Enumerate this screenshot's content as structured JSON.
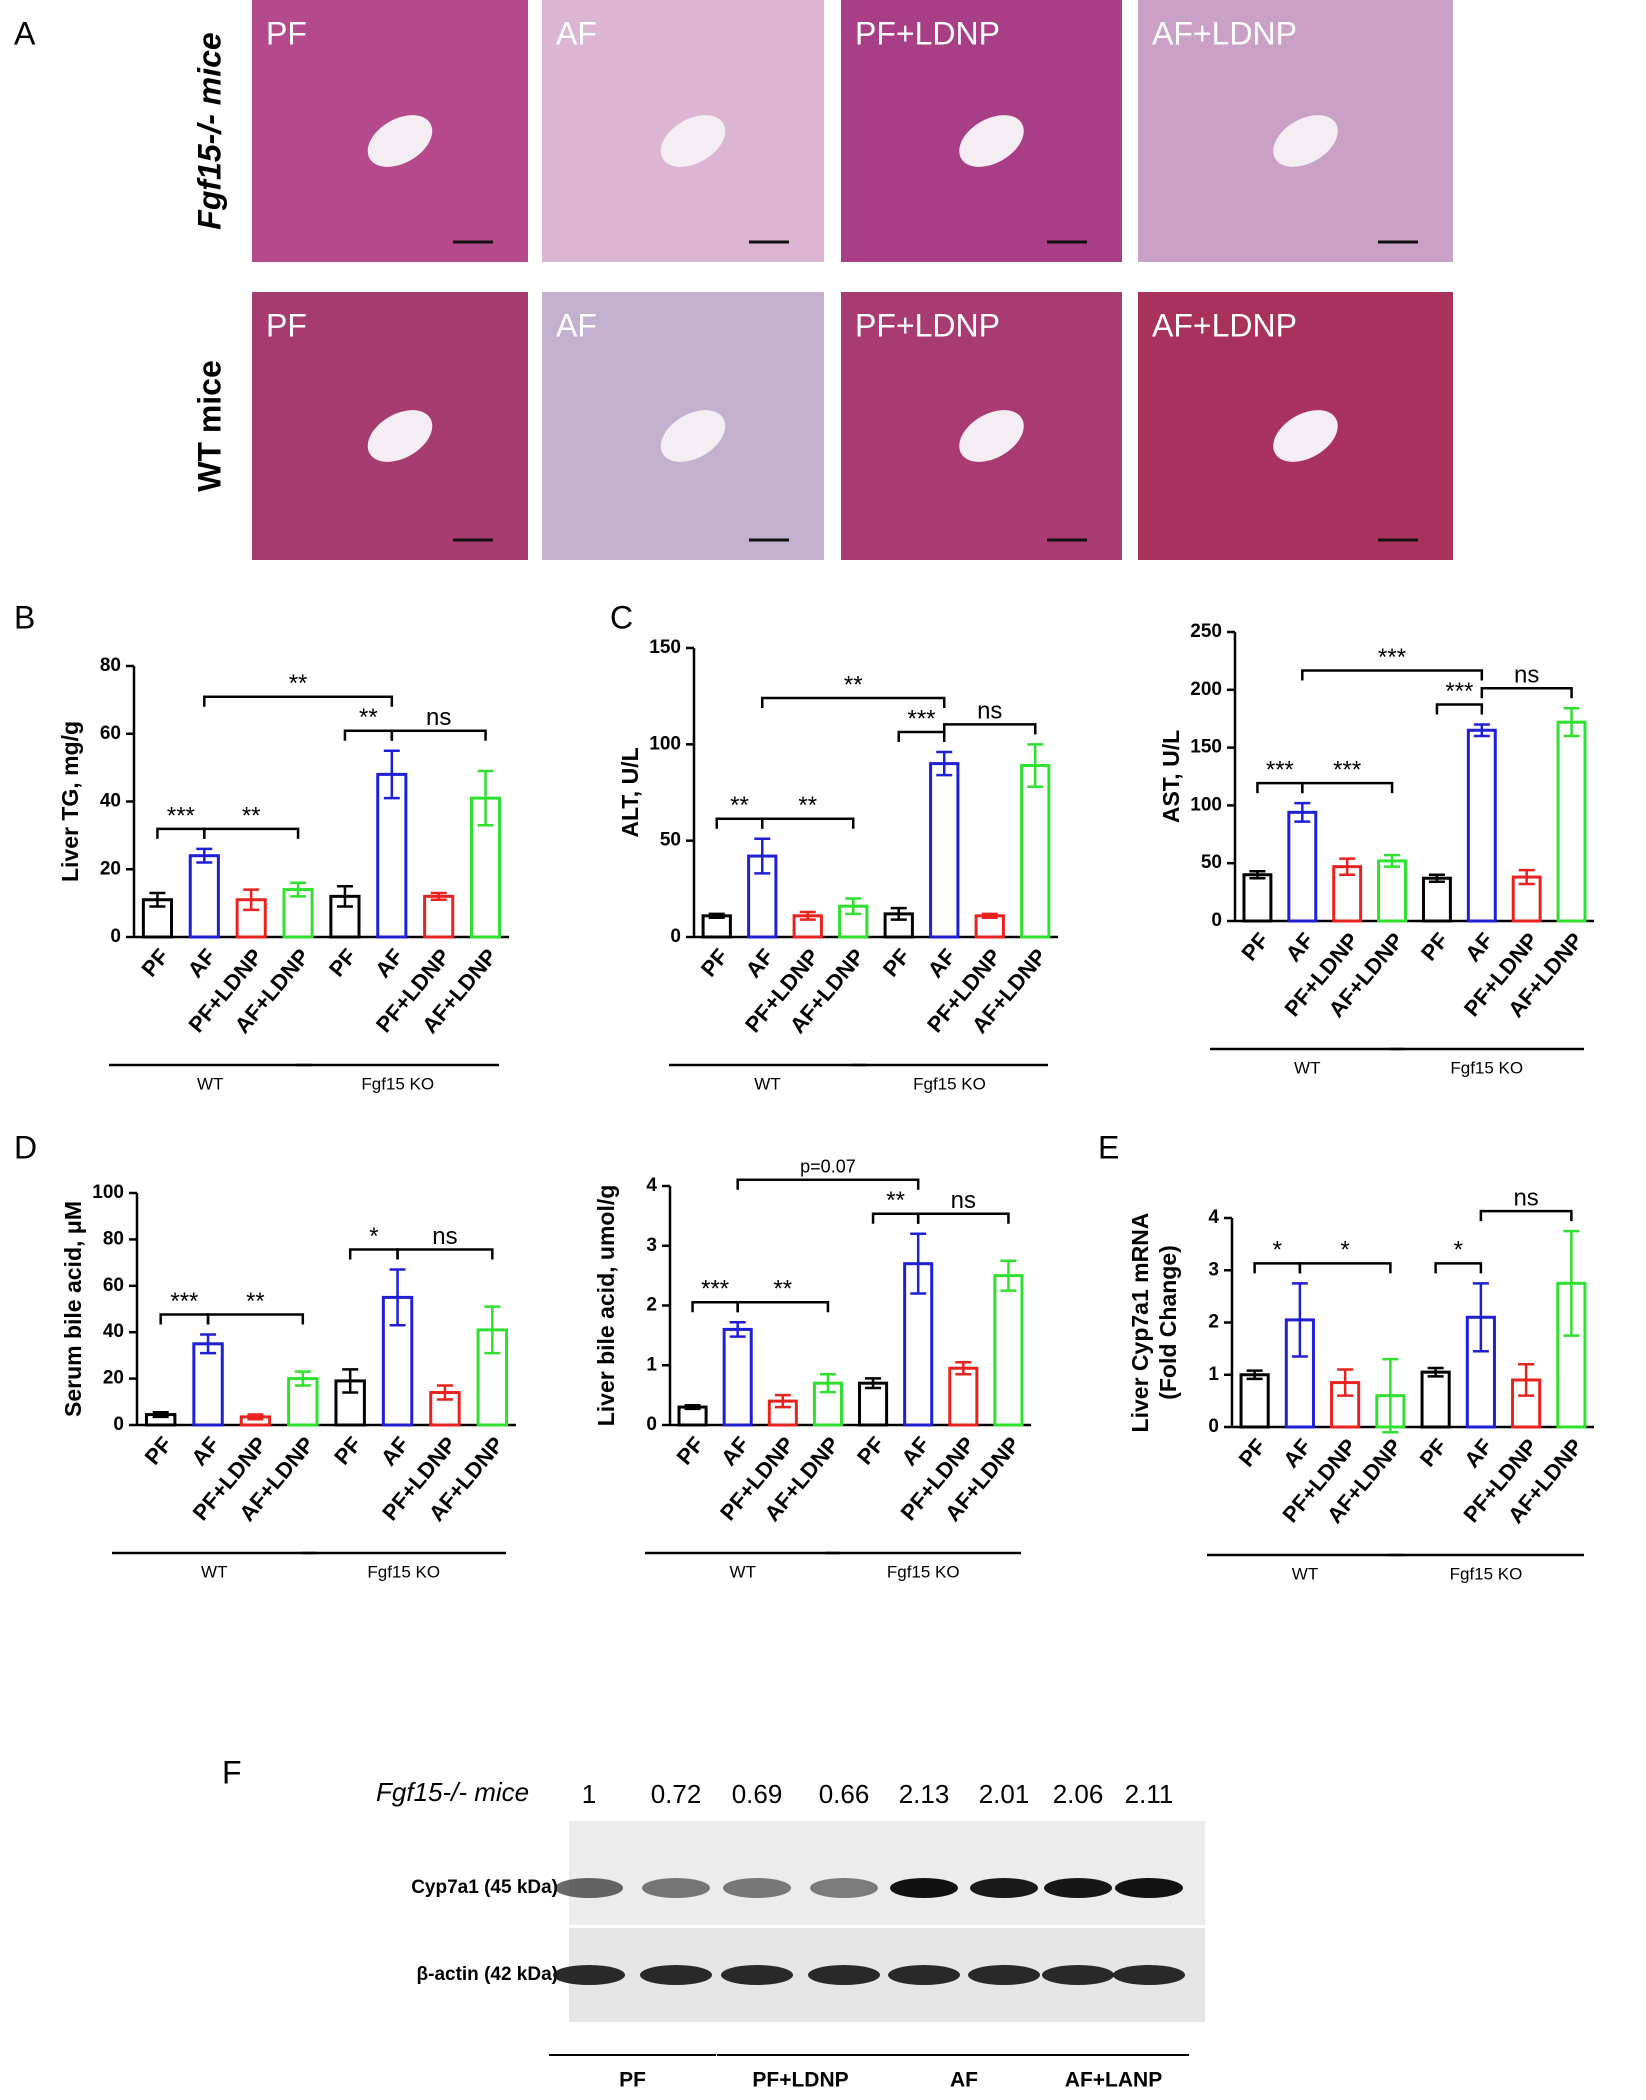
{
  "panel_labels": [
    "A",
    "B",
    "C",
    "D",
    "E",
    "F"
  ],
  "histology": {
    "rows": [
      {
        "label": "Fgf15-/- mice",
        "panels": [
          "PF",
          "AF",
          "PF+LDNP",
          "AF+LDNP"
        ]
      },
      {
        "label": "WT mice",
        "panels": [
          "PF",
          "AF",
          "PF+LDNP",
          "AF+LDNP"
        ]
      }
    ]
  },
  "chart_data": [
    {
      "type": "bar",
      "ylabel": [
        "Liver TG, mg/g"
      ],
      "categories": [
        "PF",
        "AF",
        "PF+LDNP",
        "AF+LDNP",
        "PF",
        "AF",
        "PF+LDNP",
        "AF+LDNP"
      ],
      "values": [
        11,
        24,
        11,
        14,
        12,
        48,
        12,
        41
      ],
      "errors": [
        2,
        2,
        3,
        2,
        3,
        7,
        1,
        8
      ],
      "colors": [
        "#000000",
        "#1f1fd6",
        "#e8231f",
        "#2fe02f",
        "#000000",
        "#1f1fd6",
        "#e8231f",
        "#2fe02f"
      ],
      "ylim": [
        0,
        80
      ],
      "yticks": [
        0,
        20,
        40,
        60,
        80
      ],
      "groups": [
        "WT",
        "Fgf15 KO"
      ],
      "brackets": [
        {
          "pair": [
            0,
            1
          ],
          "label": "***"
        },
        {
          "pair": [
            1,
            3
          ],
          "label": "**"
        },
        {
          "pair": [
            4,
            5
          ],
          "label": "**"
        },
        {
          "pair": [
            5,
            7
          ],
          "label": "ns"
        },
        {
          "pair": [
            1,
            5
          ],
          "label": "**"
        }
      ]
    },
    {
      "type": "bar",
      "ylabel": [
        "ALT, U/L"
      ],
      "categories": [
        "PF",
        "AF",
        "PF+LDNP",
        "AF+LDNP",
        "PF",
        "AF",
        "PF+LDNP",
        "AF+LDNP"
      ],
      "values": [
        11,
        42,
        11,
        16,
        12,
        90,
        11,
        89
      ],
      "errors": [
        1,
        9,
        2,
        4,
        3,
        6,
        1,
        11
      ],
      "colors": [
        "#000000",
        "#1f1fd6",
        "#e8231f",
        "#2fe02f",
        "#000000",
        "#1f1fd6",
        "#e8231f",
        "#2fe02f"
      ],
      "ylim": [
        0,
        150
      ],
      "yticks": [
        0,
        50,
        100,
        150
      ],
      "groups": [
        "WT",
        "Fgf15 KO"
      ],
      "brackets": [
        {
          "pair": [
            0,
            1
          ],
          "label": "**"
        },
        {
          "pair": [
            1,
            3
          ],
          "label": "**"
        },
        {
          "pair": [
            4,
            5
          ],
          "label": "***"
        },
        {
          "pair": [
            5,
            7
          ],
          "label": "ns"
        },
        {
          "pair": [
            1,
            5
          ],
          "label": "**"
        }
      ]
    },
    {
      "type": "bar",
      "ylabel": [
        "AST, U/L"
      ],
      "categories": [
        "PF",
        "AF",
        "PF+LDNP",
        "AF+LDNP",
        "PF",
        "AF",
        "PF+LDNP",
        "AF+LDNP"
      ],
      "values": [
        40,
        94,
        47,
        52,
        37,
        165,
        38,
        172
      ],
      "errors": [
        3,
        8,
        7,
        5,
        3,
        5,
        6,
        12
      ],
      "colors": [
        "#000000",
        "#1f1fd6",
        "#e8231f",
        "#2fe02f",
        "#000000",
        "#1f1fd6",
        "#e8231f",
        "#2fe02f"
      ],
      "ylim": [
        0,
        250
      ],
      "yticks": [
        0,
        50,
        100,
        150,
        200,
        250
      ],
      "groups": [
        "WT",
        "Fgf15 KO"
      ],
      "brackets": [
        {
          "pair": [
            0,
            1
          ],
          "label": "***"
        },
        {
          "pair": [
            1,
            3
          ],
          "label": "***"
        },
        {
          "pair": [
            4,
            5
          ],
          "label": "***"
        },
        {
          "pair": [
            5,
            7
          ],
          "label": "ns"
        },
        {
          "pair": [
            1,
            5
          ],
          "label": "***"
        }
      ]
    },
    {
      "type": "bar",
      "ylabel": [
        "Serum bile acid, μM"
      ],
      "categories": [
        "PF",
        "AF",
        "PF+LDNP",
        "AF+LDNP",
        "PF",
        "AF",
        "PF+LDNP",
        "AF+LDNP"
      ],
      "values": [
        4.5,
        35,
        3.5,
        20,
        19,
        55,
        14,
        41
      ],
      "errors": [
        1,
        4,
        1,
        3,
        5,
        12,
        3,
        10
      ],
      "colors": [
        "#000000",
        "#1f1fd6",
        "#e8231f",
        "#2fe02f",
        "#000000",
        "#1f1fd6",
        "#e8231f",
        "#2fe02f"
      ],
      "ylim": [
        0,
        100
      ],
      "yticks": [
        0,
        20,
        40,
        60,
        80,
        100
      ],
      "groups": [
        "WT",
        "Fgf15 KO"
      ],
      "brackets": [
        {
          "pair": [
            0,
            1
          ],
          "label": "***"
        },
        {
          "pair": [
            1,
            3
          ],
          "label": "**"
        },
        {
          "pair": [
            4,
            5
          ],
          "label": "*"
        },
        {
          "pair": [
            5,
            7
          ],
          "label": "ns"
        }
      ]
    },
    {
      "type": "bar",
      "ylabel": [
        "Liver bile acid, umol/g"
      ],
      "categories": [
        "PF",
        "AF",
        "PF+LDNP",
        "AF+LDNP",
        "PF",
        "AF",
        "PF+LDNP",
        "AF+LDNP"
      ],
      "values": [
        0.3,
        1.6,
        0.4,
        0.7,
        0.7,
        2.7,
        0.95,
        2.5
      ],
      "errors": [
        0.03,
        0.12,
        0.1,
        0.15,
        0.08,
        0.5,
        0.1,
        0.25
      ],
      "colors": [
        "#000000",
        "#1f1fd6",
        "#e8231f",
        "#2fe02f",
        "#000000",
        "#1f1fd6",
        "#e8231f",
        "#2fe02f"
      ],
      "ylim": [
        0,
        4
      ],
      "yticks": [
        0,
        1,
        2,
        3,
        4
      ],
      "groups": [
        "WT",
        "Fgf15 KO"
      ],
      "brackets": [
        {
          "pair": [
            0,
            1
          ],
          "label": "***"
        },
        {
          "pair": [
            1,
            3
          ],
          "label": "**"
        },
        {
          "pair": [
            4,
            5
          ],
          "label": "**"
        },
        {
          "pair": [
            5,
            7
          ],
          "label": "ns"
        },
        {
          "pair": [
            1,
            5
          ],
          "label": "p=0.07"
        }
      ]
    },
    {
      "type": "bar",
      "ylabel": [
        "Liver Cyp7a1 mRNA",
        "(Fold Change)"
      ],
      "categories": [
        "PF",
        "AF",
        "PF+LDNP",
        "AF+LDNP",
        "PF",
        "AF",
        "PF+LDNP",
        "AF+LDNP"
      ],
      "values": [
        1.0,
        2.05,
        0.85,
        0.6,
        1.05,
        2.1,
        0.9,
        2.75
      ],
      "errors": [
        0.08,
        0.7,
        0.25,
        0.7,
        0.08,
        0.65,
        0.3,
        1.0
      ],
      "colors": [
        "#000000",
        "#1f1fd6",
        "#e8231f",
        "#2fe02f",
        "#000000",
        "#1f1fd6",
        "#e8231f",
        "#2fe02f"
      ],
      "ylim": [
        0,
        4
      ],
      "yticks": [
        0,
        1,
        2,
        3,
        4
      ],
      "groups": [
        "WT",
        "Fgf15 KO"
      ],
      "brackets": [
        {
          "pair": [
            0,
            1
          ],
          "label": "*"
        },
        {
          "pair": [
            1,
            3
          ],
          "label": "*"
        },
        {
          "pair": [
            4,
            5
          ],
          "label": "*"
        },
        {
          "pair": [
            5,
            7
          ],
          "label": "ns"
        }
      ]
    }
  ],
  "western_blot": {
    "label": "Fgf15-/- mice",
    "lane_values": [
      1,
      0.72,
      0.69,
      0.66,
      2.13,
      2.01,
      2.06,
      2.11
    ],
    "bands": [
      "Cyp7a1 (45 kDa)",
      "β-actin (42 kDa)"
    ],
    "groups": [
      "PF",
      "PF+LDNP",
      "AF",
      "AF+LANP"
    ]
  }
}
